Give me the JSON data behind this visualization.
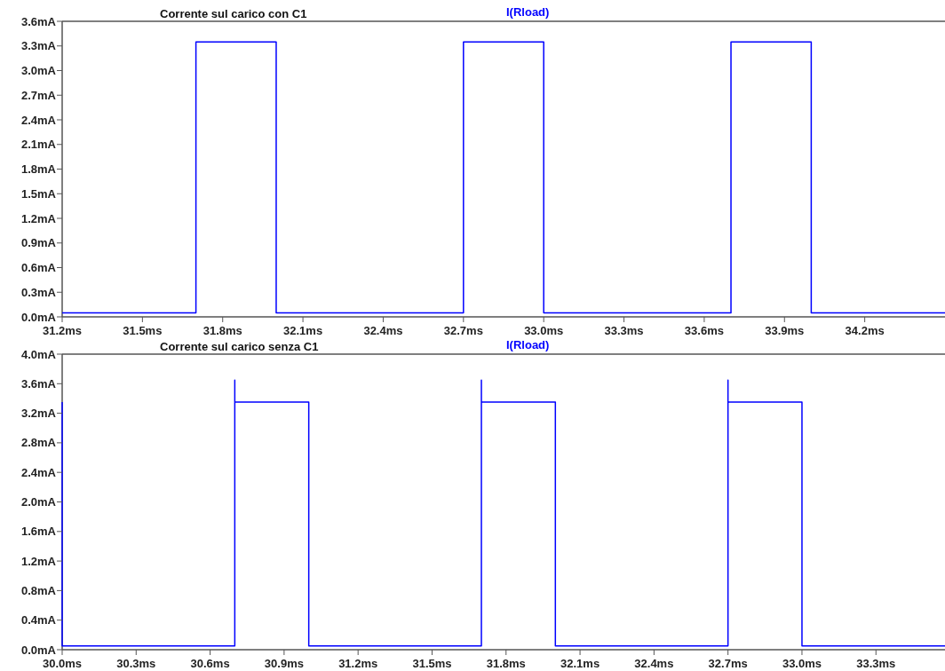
{
  "chart_data": [
    {
      "type": "line",
      "title": "Corrente sul carico con C1",
      "legend": "top",
      "xlim": [
        31.2,
        34.5
      ],
      "ylim": [
        0,
        3.6
      ],
      "xticks": [
        {
          "value": 31.2,
          "label": "31.2ms"
        },
        {
          "value": 31.5,
          "label": "31.5ms"
        },
        {
          "value": 31.8,
          "label": "31.8ms"
        },
        {
          "value": 32.1,
          "label": "32.1ms"
        },
        {
          "value": 32.4,
          "label": "32.4ms"
        },
        {
          "value": 32.7,
          "label": "32.7ms"
        },
        {
          "value": 33.0,
          "label": "33.0ms"
        },
        {
          "value": 33.3,
          "label": "33.3ms"
        },
        {
          "value": 33.6,
          "label": "33.6ms"
        },
        {
          "value": 33.9,
          "label": "33.9ms"
        },
        {
          "value": 34.2,
          "label": "34.2ms"
        }
      ],
      "yticks": [
        {
          "value": 0,
          "label": "0.0mA"
        },
        {
          "value": 0.3,
          "label": "0.3mA"
        },
        {
          "value": 0.6,
          "label": "0.6mA"
        },
        {
          "value": 0.9,
          "label": "0.9mA"
        },
        {
          "value": 1.2,
          "label": "1.2mA"
        },
        {
          "value": 1.5,
          "label": "1.5mA"
        },
        {
          "value": 1.8,
          "label": "1.8mA"
        },
        {
          "value": 2.1,
          "label": "2.1mA"
        },
        {
          "value": 2.4,
          "label": "2.4mA"
        },
        {
          "value": 2.7,
          "label": "2.7mA"
        },
        {
          "value": 3.0,
          "label": "3.0mA"
        },
        {
          "value": 3.3,
          "label": "3.3mA"
        },
        {
          "value": 3.6,
          "label": "3.6mA"
        }
      ],
      "series": [
        {
          "name": "I(Rload)",
          "color": "#0000ff",
          "x": [
            31.2,
            31.7,
            31.7,
            32.0,
            32.0,
            32.7,
            32.7,
            33.0,
            33.0,
            33.7,
            33.7,
            34.0,
            34.0,
            34.5
          ],
          "values": [
            0.05,
            0.05,
            3.35,
            3.35,
            0.05,
            0.05,
            3.35,
            3.35,
            0.05,
            0.05,
            3.35,
            3.35,
            0.05,
            0.05
          ]
        }
      ]
    },
    {
      "type": "line",
      "title": "Corrente sul carico senza C1",
      "legend": "top",
      "xlim": [
        30.0,
        33.58
      ],
      "ylim": [
        0,
        4.0
      ],
      "xticks": [
        {
          "value": 30.0,
          "label": "30.0ms"
        },
        {
          "value": 30.3,
          "label": "30.3ms"
        },
        {
          "value": 30.6,
          "label": "30.6ms"
        },
        {
          "value": 30.9,
          "label": "30.9ms"
        },
        {
          "value": 31.2,
          "label": "31.2ms"
        },
        {
          "value": 31.5,
          "label": "31.5ms"
        },
        {
          "value": 31.8,
          "label": "31.8ms"
        },
        {
          "value": 32.1,
          "label": "32.1ms"
        },
        {
          "value": 32.4,
          "label": "32.4ms"
        },
        {
          "value": 32.7,
          "label": "32.7ms"
        },
        {
          "value": 33.0,
          "label": "33.0ms"
        },
        {
          "value": 33.3,
          "label": "33.3ms"
        }
      ],
      "yticks": [
        {
          "value": 0,
          "label": "0.0mA"
        },
        {
          "value": 0.4,
          "label": "0.4mA"
        },
        {
          "value": 0.8,
          "label": "0.8mA"
        },
        {
          "value": 1.2,
          "label": "1.2mA"
        },
        {
          "value": 1.6,
          "label": "1.6mA"
        },
        {
          "value": 2.0,
          "label": "2.0mA"
        },
        {
          "value": 2.4,
          "label": "2.4mA"
        },
        {
          "value": 2.8,
          "label": "2.8mA"
        },
        {
          "value": 3.2,
          "label": "3.2mA"
        },
        {
          "value": 3.6,
          "label": "3.6mA"
        },
        {
          "value": 4.0,
          "label": "4.0mA"
        }
      ],
      "series": [
        {
          "name": "I(Rload)",
          "color": "#0000ff",
          "x": [
            30.0,
            30.0,
            30.7,
            30.7,
            30.7,
            31.0,
            31.0,
            31.7,
            31.7,
            31.7,
            32.0,
            32.0,
            32.7,
            32.7,
            32.7,
            33.0,
            33.0,
            33.58
          ],
          "values": [
            3.35,
            0.05,
            0.05,
            3.65,
            3.35,
            3.35,
            0.05,
            0.05,
            3.65,
            3.35,
            3.35,
            0.05,
            0.05,
            3.65,
            3.35,
            3.35,
            0.05,
            0.05
          ]
        }
      ]
    }
  ]
}
